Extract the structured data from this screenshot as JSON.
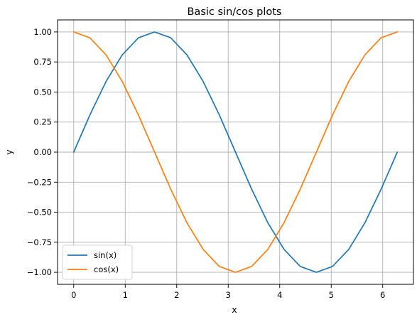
{
  "chart_data": {
    "type": "line",
    "title": "Basic sin/cos plots",
    "xlabel": "x",
    "ylabel": "y",
    "xlim": [
      -0.314,
      6.597
    ],
    "ylim": [
      -1.1,
      1.1
    ],
    "xticks": [
      0,
      1,
      2,
      3,
      4,
      5,
      6
    ],
    "yticks": [
      -1.0,
      -0.75,
      -0.5,
      -0.25,
      0.0,
      0.25,
      0.5,
      0.75,
      1.0
    ],
    "xtick_labels": [
      "0",
      "1",
      "2",
      "3",
      "4",
      "5",
      "6"
    ],
    "ytick_labels": [
      "−1.00",
      "−0.75",
      "−0.50",
      "−0.25",
      "0.00",
      "0.25",
      "0.50",
      "0.75",
      "1.00"
    ],
    "grid": true,
    "legend": {
      "placement": "lower-left",
      "entries": [
        "sin(x)",
        "cos(x)"
      ]
    },
    "series": [
      {
        "name": "sin(x)",
        "color": "#1f77b4",
        "x": [
          0,
          0.3142,
          0.6283,
          0.9425,
          1.2566,
          1.5708,
          1.885,
          2.1991,
          2.5133,
          2.8274,
          3.1416,
          3.4558,
          3.7699,
          4.0841,
          4.3982,
          4.7124,
          5.0265,
          5.3407,
          5.6549,
          5.969,
          6.2832
        ],
        "y": [
          0.0,
          0.309,
          0.5878,
          0.809,
          0.9511,
          1.0,
          0.9511,
          0.809,
          0.5878,
          0.309,
          0.0,
          -0.309,
          -0.5878,
          -0.809,
          -0.9511,
          -1.0,
          -0.9511,
          -0.809,
          -0.5878,
          -0.309,
          0.0
        ]
      },
      {
        "name": "cos(x)",
        "color": "#ff7f0e",
        "x": [
          0,
          0.3142,
          0.6283,
          0.9425,
          1.2566,
          1.5708,
          1.885,
          2.1991,
          2.5133,
          2.8274,
          3.1416,
          3.4558,
          3.7699,
          4.0841,
          4.3982,
          4.7124,
          5.0265,
          5.3407,
          5.6549,
          5.969,
          6.2832
        ],
        "y": [
          1.0,
          0.9511,
          0.809,
          0.5878,
          0.309,
          0.0,
          -0.309,
          -0.5878,
          -0.809,
          -0.9511,
          -1.0,
          -0.9511,
          -0.809,
          -0.5878,
          -0.309,
          0.0,
          0.309,
          0.5878,
          0.809,
          0.9511,
          1.0
        ]
      }
    ]
  }
}
